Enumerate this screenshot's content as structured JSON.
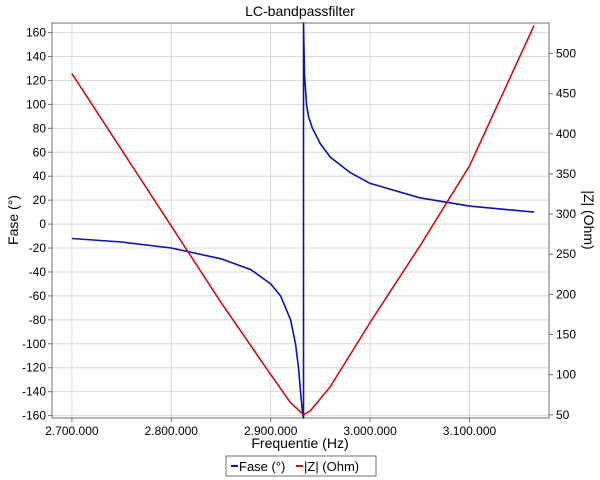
{
  "chart_data": {
    "type": "line",
    "title": "LC-bandpassfilter",
    "xlabel": "Frequentie (Hz)",
    "ylabel_left": "Fase (°)",
    "ylabel_right": "|Z| (Ohm)",
    "xlim": [
      2680000,
      3180000
    ],
    "ylim_left": [
      -162,
      168
    ],
    "ylim_right": [
      46,
      538
    ],
    "x_ticks": [
      2700000,
      2800000,
      2900000,
      3000000,
      3100000
    ],
    "x_tick_labels": [
      "2.700.000",
      "2.800.000",
      "2.900.000",
      "3.000.000",
      "3.100.000"
    ],
    "y_left_ticks": [
      -160,
      -140,
      -120,
      -100,
      -80,
      -60,
      -40,
      -20,
      0,
      20,
      40,
      60,
      80,
      100,
      120,
      140,
      160
    ],
    "y_left_tick_labels": [
      "-160",
      "-140",
      "-120",
      "-100",
      "-80",
      "-60",
      "-40",
      "-20",
      "0",
      "20",
      "40",
      "60",
      "80",
      "100",
      "120",
      "140",
      "160"
    ],
    "y_right_ticks": [
      50,
      100,
      150,
      200,
      250,
      300,
      350,
      400,
      450,
      500
    ],
    "y_right_tick_labels": [
      "50",
      "100",
      "150",
      "200",
      "250",
      "300",
      "350",
      "400",
      "450",
      "500"
    ],
    "grid": true,
    "legend_position": "bottom-center",
    "series": [
      {
        "name": "Fase (°)",
        "axis": "left",
        "color": "#1010b0",
        "x": [
          2700000,
          2750000,
          2800000,
          2850000,
          2880000,
          2900000,
          2910000,
          2920000,
          2925000,
          2928000,
          2930000,
          2932000,
          2933000,
          2933000,
          2934000,
          2936000,
          2938000,
          2942000,
          2950000,
          2960000,
          2980000,
          3000000,
          3050000,
          3100000,
          3165000
        ],
        "y": [
          -12,
          -15,
          -20,
          -29,
          -38,
          -50,
          -60,
          -80,
          -100,
          -120,
          -140,
          -158,
          -165,
          168,
          125,
          100,
          90,
          80,
          67,
          56,
          43,
          34,
          22,
          15,
          10
        ]
      },
      {
        "name": "|Z| (Ohm)",
        "axis": "right",
        "color": "#cc1010",
        "x": [
          2700000,
          2750000,
          2800000,
          2850000,
          2900000,
          2920000,
          2933000,
          2940000,
          2960000,
          3000000,
          3050000,
          3100000,
          3165000
        ],
        "y": [
          475,
          380,
          285,
          190,
          100,
          65,
          50,
          55,
          85,
          165,
          260,
          360,
          535
        ]
      }
    ]
  }
}
